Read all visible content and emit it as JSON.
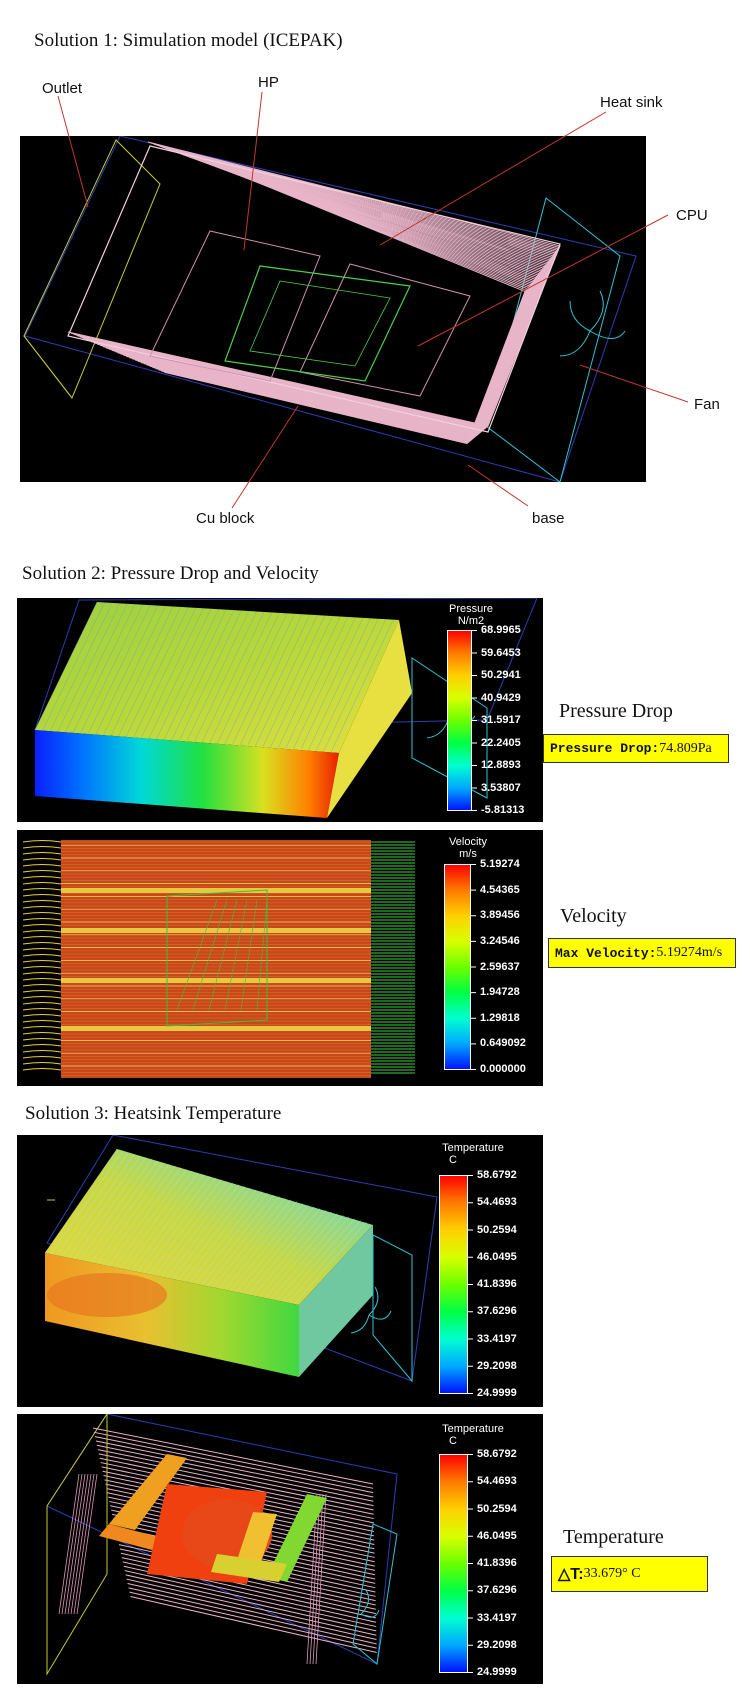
{
  "solution1": {
    "heading": "Solution 1: Simulation model (ICEPAK)",
    "labels": {
      "outlet": "Outlet",
      "hp": "HP",
      "heat_sink": "Heat sink",
      "cpu": "CPU",
      "fan": "Fan",
      "cu_block": "Cu block",
      "base": "base"
    }
  },
  "solution2": {
    "heading": "Solution 2: Pressure Drop and Velocity",
    "pressure": {
      "legend_title": [
        "Pressure",
        "N/m2"
      ],
      "ticks": [
        "68.9965",
        "59.6453",
        "50.2941",
        "40.9429",
        "31.5917",
        "22.2405",
        "12.8893",
        "3.53807",
        "-5.81313"
      ],
      "side_title": "Pressure Drop",
      "result_label": "Pressure Drop:",
      "result_value": "74.809Pa"
    },
    "velocity": {
      "legend_title": [
        "Velocity",
        "m/s"
      ],
      "ticks": [
        "5.19274",
        "4.54365",
        "3.89456",
        "3.24546",
        "2.59637",
        "1.94728",
        "1.29818",
        "0.649092",
        "0.000000"
      ],
      "side_title": "Velocity",
      "result_label": "Max Velocity:",
      "result_value": "5.19274m/s"
    }
  },
  "solution3": {
    "heading": "Solution 3: Heatsink Temperature",
    "temperature": {
      "legend_title": [
        "Temperature",
        "C"
      ],
      "ticks": [
        "58.6792",
        "54.4693",
        "50.2594",
        "46.0495",
        "41.8396",
        "37.6296",
        "33.4197",
        "29.2098",
        "24.9999"
      ]
    },
    "temperature2": {
      "legend_title": [
        "Temperature",
        "C"
      ],
      "ticks": [
        "58.6792",
        "54.4693",
        "50.2594",
        "46.0495",
        "41.8396",
        "37.6296",
        "33.4197",
        "29.2098",
        "24.9999"
      ],
      "side_title": "Temperature",
      "result_label": "△T:",
      "result_value": "33.679° C"
    }
  },
  "colors": {
    "background": "#000000",
    "callout_line": "#c0392b",
    "fin_pink": "#e8b4c8",
    "enclosure_blue": "#2a3fb0",
    "enclosure_cyan": "#2fc4d2",
    "outlet_yellow": "#c8c832",
    "result_yellow": "#ffff00"
  }
}
